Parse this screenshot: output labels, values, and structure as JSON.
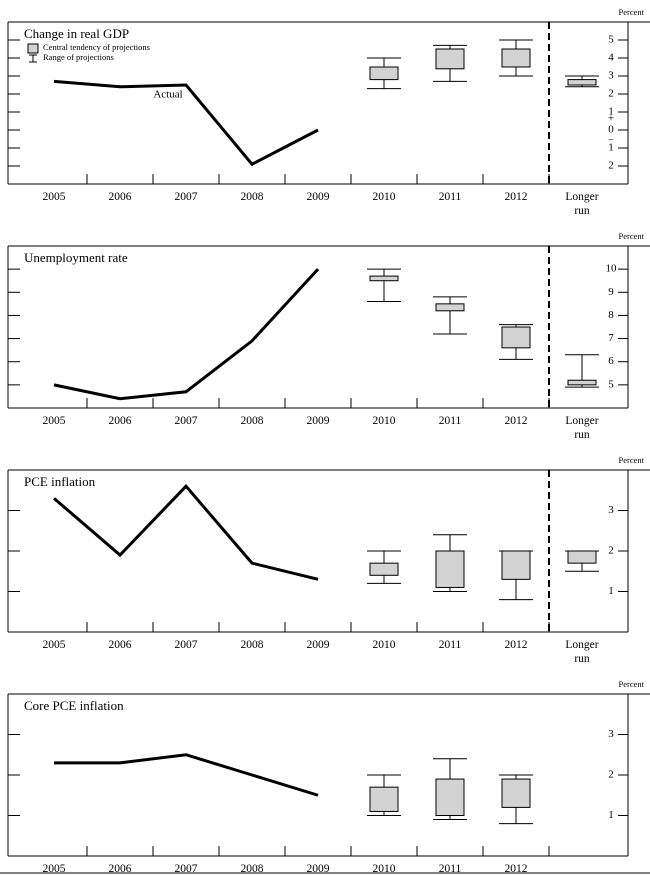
{
  "chart_data": [
    {
      "type": "projection-box",
      "title": "Change in real GDP",
      "y_unit": "Percent",
      "categories": [
        "2005",
        "2006",
        "2007",
        "2008",
        "2009",
        "2010",
        "2011",
        "2012",
        "Longer run"
      ],
      "actual": {
        "label": "Actual",
        "values": [
          2.7,
          2.4,
          2.5,
          -1.9,
          0.0,
          null,
          null,
          null,
          null
        ]
      },
      "central_tendency": {
        "low": [
          null,
          null,
          null,
          null,
          null,
          2.8,
          3.4,
          3.5,
          2.5
        ],
        "high": [
          null,
          null,
          null,
          null,
          null,
          3.5,
          4.5,
          4.5,
          2.8
        ]
      },
      "range": {
        "low": [
          null,
          null,
          null,
          null,
          null,
          2.3,
          2.7,
          3.0,
          2.4
        ],
        "high": [
          null,
          null,
          null,
          null,
          null,
          4.0,
          4.7,
          5.0,
          3.0
        ]
      },
      "legend": {
        "central_tendency": "Central tendency of projections",
        "range": "Range of projections"
      },
      "zero_signs": [
        "+",
        "−"
      ],
      "ylim": [
        -3,
        6
      ],
      "yticks": [
        {
          "value": -2,
          "label": "2"
        },
        {
          "value": -1,
          "label": "1"
        },
        0,
        1,
        2,
        3,
        4,
        5
      ],
      "dashed_divider": true,
      "box_color": "#d3d3d3",
      "line_color": "#000000"
    },
    {
      "type": "projection-box",
      "title": "Unemployment rate",
      "y_unit": "Percent",
      "categories": [
        "2005",
        "2006",
        "2007",
        "2008",
        "2009",
        "2010",
        "2011",
        "2012",
        "Longer run"
      ],
      "actual": {
        "values": [
          5.0,
          4.4,
          4.7,
          6.9,
          10.0,
          null,
          null,
          null,
          null
        ]
      },
      "central_tendency": {
        "low": [
          null,
          null,
          null,
          null,
          null,
          9.5,
          8.2,
          6.6,
          5.0
        ],
        "high": [
          null,
          null,
          null,
          null,
          null,
          9.7,
          8.5,
          7.5,
          5.2
        ]
      },
      "range": {
        "low": [
          null,
          null,
          null,
          null,
          null,
          8.6,
          7.2,
          6.1,
          4.9
        ],
        "high": [
          null,
          null,
          null,
          null,
          null,
          10.0,
          8.8,
          7.6,
          6.3
        ]
      },
      "ylim": [
        4,
        11
      ],
      "yticks": [
        5,
        6,
        7,
        8,
        9,
        10
      ],
      "dashed_divider": true,
      "box_color": "#d3d3d3",
      "line_color": "#000000"
    },
    {
      "type": "projection-box",
      "title": "PCE inflation",
      "y_unit": "Percent",
      "categories": [
        "2005",
        "2006",
        "2007",
        "2008",
        "2009",
        "2010",
        "2011",
        "2012",
        "Longer run"
      ],
      "actual": {
        "values": [
          3.3,
          1.9,
          3.6,
          1.7,
          1.3,
          null,
          null,
          null,
          null
        ]
      },
      "central_tendency": {
        "low": [
          null,
          null,
          null,
          null,
          null,
          1.4,
          1.1,
          1.3,
          1.7
        ],
        "high": [
          null,
          null,
          null,
          null,
          null,
          1.7,
          2.0,
          2.0,
          2.0
        ]
      },
      "range": {
        "low": [
          null,
          null,
          null,
          null,
          null,
          1.2,
          1.0,
          0.8,
          1.5
        ],
        "high": [
          null,
          null,
          null,
          null,
          null,
          2.0,
          2.4,
          2.0,
          2.0
        ]
      },
      "ylim": [
        0,
        4
      ],
      "yticks": [
        1,
        2,
        3
      ],
      "dashed_divider": true,
      "box_color": "#d3d3d3",
      "line_color": "#000000"
    },
    {
      "type": "projection-box",
      "title": "Core PCE inflation",
      "y_unit": "Percent",
      "categories": [
        "2005",
        "2006",
        "2007",
        "2008",
        "2009",
        "2010",
        "2011",
        "2012",
        null
      ],
      "actual": {
        "values": [
          2.3,
          2.3,
          2.5,
          2.0,
          1.5,
          null,
          null,
          null,
          null
        ]
      },
      "central_tendency": {
        "low": [
          null,
          null,
          null,
          null,
          null,
          1.1,
          1.0,
          1.2,
          null
        ],
        "high": [
          null,
          null,
          null,
          null,
          null,
          1.7,
          1.9,
          1.9,
          null
        ]
      },
      "range": {
        "low": [
          null,
          null,
          null,
          null,
          null,
          1.0,
          0.9,
          0.8,
          null
        ],
        "high": [
          null,
          null,
          null,
          null,
          null,
          2.0,
          2.4,
          2.0,
          null
        ]
      },
      "ylim": [
        0,
        4
      ],
      "yticks": [
        1,
        2,
        3
      ],
      "dashed_divider": false,
      "box_color": "#d3d3d3",
      "line_color": "#000000"
    }
  ]
}
